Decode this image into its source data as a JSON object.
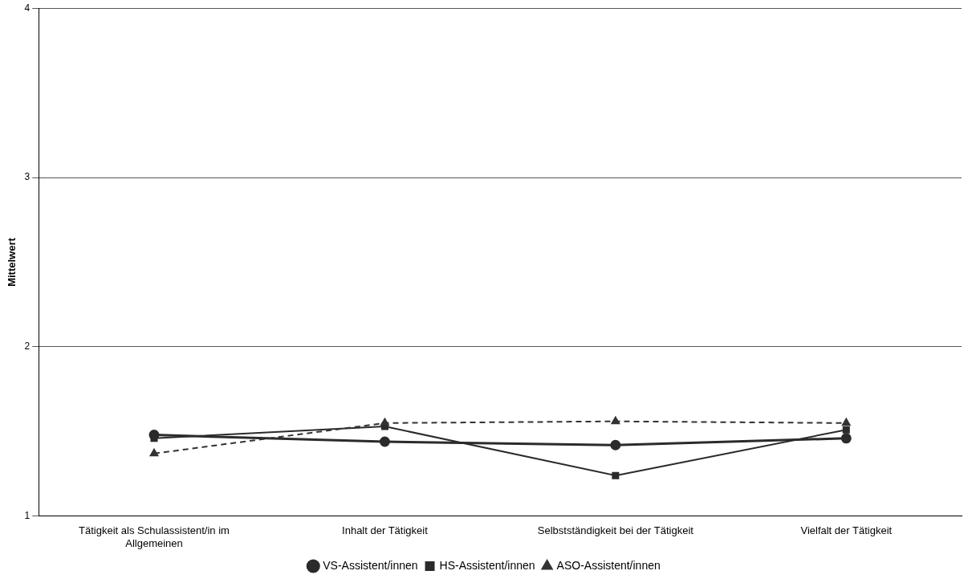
{
  "chart_data": {
    "type": "line",
    "ylabel": "Mittelwert",
    "categories": [
      "Tätigkeit als Schulassistent/in im Allgemeinen",
      "Inhalt der Tätigkeit",
      "Selbstständigkeit bei der Tätigkeit",
      "Vielfalt der Tätigkeit"
    ],
    "series": [
      {
        "name": "VS-Assistent/innen",
        "color": "#2b2b2b",
        "marker": "circle",
        "line_style": "solid",
        "values": [
          1.48,
          1.44,
          1.42,
          1.46
        ]
      },
      {
        "name": "HS-Assistent/innen",
        "color": "#2b2b2b",
        "marker": "square",
        "line_style": "solid",
        "values": [
          1.46,
          1.53,
          1.24,
          1.51
        ]
      },
      {
        "name": "ASO-Assistent/innen",
        "color": "#333333",
        "marker": "triangle",
        "line_style": "dashed",
        "values": [
          1.37,
          1.55,
          1.56,
          1.55
        ]
      }
    ],
    "ylim": [
      1,
      4
    ],
    "yticks": [
      1,
      2,
      3,
      4
    ],
    "grid": "y",
    "legend": "bottom"
  }
}
